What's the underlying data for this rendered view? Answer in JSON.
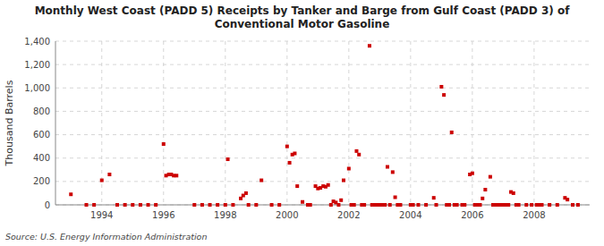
{
  "chart_data": {
    "type": "scatter",
    "title": "Monthly West Coast (PADD 5) Receipts by Tanker and Barge from Gulf Coast (PADD 3) of\nConventional Motor Gasoline",
    "ylabel": "Thousand Barrels",
    "source": "Source: U.S. Energy Information Administration",
    "color": "#cc0000",
    "marker": "square",
    "grid": true,
    "xlim": [
      1992.5,
      2009.8
    ],
    "xticks": [
      1994,
      1996,
      1998,
      2000,
      2002,
      2004,
      2006,
      2008
    ],
    "ylim": [
      0,
      1400
    ],
    "yticks": [
      0,
      200,
      400,
      600,
      800,
      {
        "value": 1000,
        "label": "1,000"
      },
      {
        "value": 1200,
        "label": "1,200"
      },
      {
        "value": 1400,
        "label": "1,400"
      }
    ],
    "x": [
      1993.0,
      1994.0,
      1994.25,
      1996.0,
      1996.08,
      1996.17,
      1996.25,
      1996.33,
      1996.42,
      1998.08,
      1998.5,
      1998.58,
      1998.67,
      1999.17,
      2000.0,
      2000.08,
      2000.17,
      2000.25,
      2000.33,
      2000.5,
      2000.92,
      2001.0,
      2001.08,
      2001.17,
      2001.25,
      2001.33,
      2001.5,
      2001.58,
      2001.75,
      2001.83,
      2002.0,
      2002.25,
      2002.33,
      2002.67,
      2003.25,
      2003.42,
      2003.5,
      2004.75,
      2005.0,
      2005.08,
      2005.33,
      2005.92,
      2006.0,
      2006.33,
      2006.42,
      2006.58,
      2007.25,
      2007.33,
      2009.0,
      2009.08,
      1993.5,
      1993.75,
      1994.5,
      1994.75,
      1995.0,
      1995.25,
      1995.5,
      1995.75,
      1997.0,
      1997.25,
      1997.5,
      1997.75,
      1998.0,
      1998.25,
      1998.75,
      1999.0,
      1999.5,
      1999.75,
      2000.67,
      2000.75,
      2001.42,
      2001.67,
      2002.08,
      2002.17,
      2002.42,
      2002.5,
      2002.75,
      2002.83,
      2002.92,
      2003.0,
      2003.08,
      2003.17,
      2003.33,
      2003.58,
      2003.67,
      2004.0,
      2004.08,
      2004.25,
      2004.5,
      2004.83,
      2005.17,
      2005.25,
      2005.42,
      2005.5,
      2005.67,
      2005.75,
      2006.08,
      2006.17,
      2006.25,
      2006.67,
      2006.75,
      2006.83,
      2006.92,
      2007.0,
      2007.08,
      2007.17,
      2007.42,
      2007.5,
      2007.75,
      2007.92,
      2008.08,
      2008.17,
      2008.25,
      2008.5,
      2008.75,
      2009.25,
      2009.42
    ],
    "values": [
      90,
      210,
      260,
      520,
      250,
      260,
      260,
      250,
      250,
      390,
      55,
      80,
      100,
      210,
      500,
      360,
      430,
      440,
      160,
      25,
      160,
      140,
      145,
      160,
      155,
      170,
      30,
      20,
      40,
      210,
      310,
      460,
      430,
      1360,
      325,
      280,
      65,
      60,
      1010,
      940,
      620,
      260,
      270,
      55,
      130,
      240,
      110,
      100,
      60,
      45,
      0,
      0,
      0,
      0,
      0,
      0,
      0,
      0,
      0,
      0,
      0,
      0,
      0,
      0,
      0,
      0,
      0,
      0,
      0,
      0,
      0,
      0,
      0,
      0,
      0,
      0,
      0,
      0,
      0,
      0,
      0,
      0,
      0,
      0,
      0,
      0,
      0,
      0,
      0,
      0,
      0,
      0,
      0,
      0,
      0,
      0,
      0,
      0,
      0,
      0,
      0,
      0,
      0,
      0,
      0,
      0,
      0,
      0,
      0,
      0,
      0,
      0,
      0,
      0,
      0,
      0,
      0
    ]
  }
}
